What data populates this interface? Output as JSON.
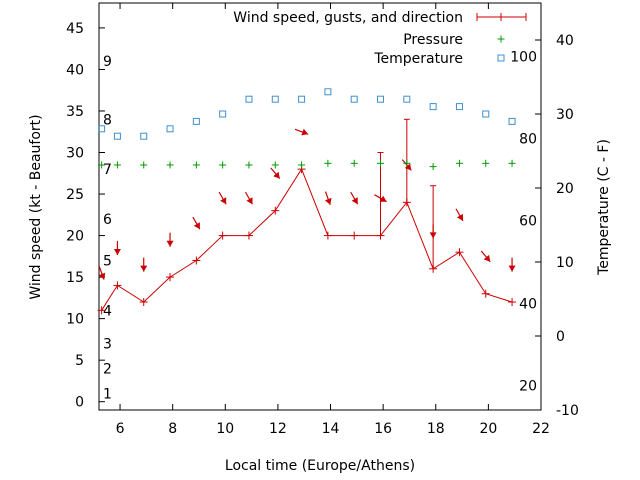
{
  "chart_data": {
    "type": "line",
    "xlabel": "Local time (Europe/Athens)",
    "ylabel_left": "Wind speed (kt - Beaufort)",
    "ylabel_right": "Temperature (C - F)",
    "xlim": [
      5.2,
      22
    ],
    "ylim_left": [
      -1,
      48
    ],
    "ylim_right": [
      -10,
      45
    ],
    "x_ticks": [
      6,
      8,
      10,
      12,
      14,
      16,
      18,
      20,
      22
    ],
    "y_left_ticks": [
      0,
      5,
      10,
      15,
      20,
      25,
      30,
      35,
      40,
      45
    ],
    "y_right_ticks": [
      -10,
      0,
      10,
      20,
      30,
      40
    ],
    "beaufort_labels": [
      {
        "label": "1",
        "kt": 1
      },
      {
        "label": "2",
        "kt": 4
      },
      {
        "label": "3",
        "kt": 7
      },
      {
        "label": "4",
        "kt": 11
      },
      {
        "label": "5",
        "kt": 17
      },
      {
        "label": "6",
        "kt": 22
      },
      {
        "label": "7",
        "kt": 28
      },
      {
        "label": "8",
        "kt": 34
      },
      {
        "label": "9",
        "kt": 41
      }
    ],
    "fahrenheit_labels": [
      {
        "label": "20",
        "c": -6.7
      },
      {
        "label": "40",
        "c": 4.4
      },
      {
        "label": "60",
        "c": 15.6
      },
      {
        "label": "80",
        "c": 26.7
      },
      {
        "label": "100",
        "c": 37.8
      }
    ],
    "legend_position": "top-right",
    "series": [
      {
        "name": "Wind speed, gusts, and direction",
        "color": "#cc0000",
        "x": [
          5.3,
          5.9,
          6.9,
          7.9,
          8.9,
          9.9,
          10.9,
          11.9,
          12.9,
          13.9,
          14.9,
          15.9,
          16.9,
          17.9,
          18.9,
          19.9,
          20.9
        ],
        "speed": [
          11,
          14,
          12,
          15,
          17,
          20,
          20,
          23,
          28,
          20,
          20,
          20,
          24,
          16,
          18,
          13,
          12
        ],
        "gust": [
          null,
          null,
          null,
          null,
          null,
          null,
          null,
          null,
          null,
          null,
          null,
          30,
          34,
          26,
          null,
          null,
          null
        ],
        "direction_deg": [
          340,
          0,
          0,
          0,
          330,
          330,
          330,
          320,
          290,
          340,
          330,
          300,
          320,
          0,
          330,
          320,
          0
        ]
      },
      {
        "name": "Pressure",
        "color": "#009900",
        "x": [
          5.3,
          5.9,
          6.9,
          7.9,
          8.9,
          9.9,
          10.9,
          11.9,
          12.9,
          13.9,
          14.9,
          15.9,
          16.9,
          17.9,
          18.9,
          19.9,
          20.9
        ],
        "values": [
          28.5,
          28.5,
          28.5,
          28.5,
          28.5,
          28.5,
          28.5,
          28.5,
          28.5,
          28.7,
          28.7,
          28.7,
          28.7,
          28.3,
          28.7,
          28.7,
          28.7
        ]
      },
      {
        "name": "Temperature",
        "color": "#3f8fd0",
        "axis": "right",
        "x": [
          5.3,
          5.9,
          6.9,
          7.9,
          8.9,
          9.9,
          10.9,
          11.9,
          12.9,
          13.9,
          14.9,
          15.9,
          16.9,
          17.9,
          18.9,
          19.9,
          20.9
        ],
        "values": [
          28.0,
          27.0,
          27.0,
          28.0,
          29.0,
          30.0,
          32.0,
          32.0,
          32.0,
          33.0,
          32.0,
          32.0,
          32.0,
          31.0,
          31.0,
          30.0,
          29.0
        ]
      }
    ]
  }
}
